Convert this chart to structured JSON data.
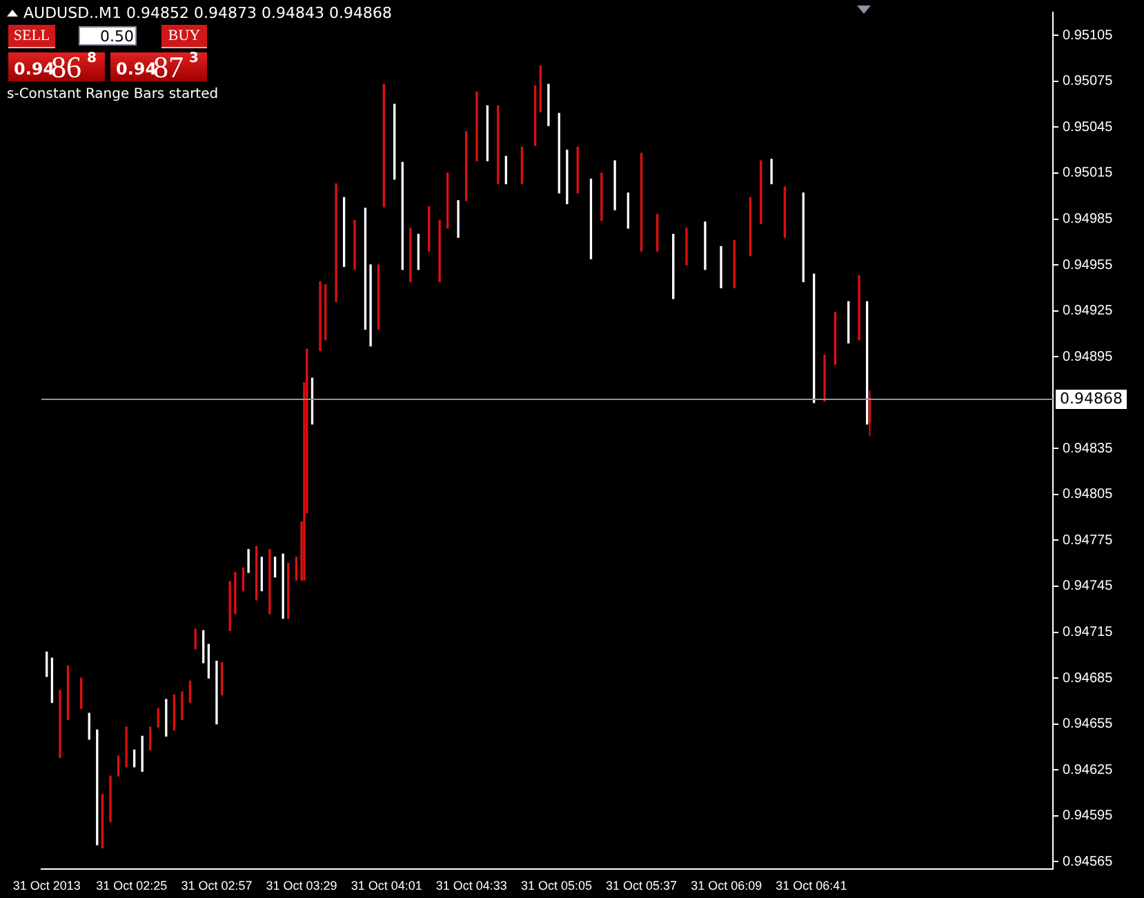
{
  "chart_data": {
    "type": "candlestick",
    "title": "AUDUSD..M1 0.94852 0.94873 0.94843 0.94868",
    "annotations": [
      "SELL",
      "0.50",
      "BUY",
      "0.94868",
      "0.94873",
      "s-Constant Range Bars started"
    ],
    "x": [
      "2013-10-31T01:53",
      "2013-10-31T01:55",
      "2013-10-31T01:58",
      "2013-10-31T02:01",
      "2013-10-31T02:06",
      "2013-10-31T02:09",
      "2013-10-31T02:12",
      "2013-10-31T02:14",
      "2013-10-31T02:17",
      "2013-10-31T02:20",
      "2013-10-31T02:23",
      "2013-10-31T02:26",
      "2013-10-31T02:29",
      "2013-10-31T02:32",
      "2013-10-31T02:35",
      "2013-10-31T02:38",
      "2013-10-31T02:41",
      "2013-10-31T02:44",
      "2013-10-31T02:47",
      "2013-10-31T02:49",
      "2013-10-31T02:52",
      "2013-10-31T02:54",
      "2013-10-31T02:57",
      "2013-10-31T02:59",
      "2013-10-31T03:02",
      "2013-10-31T03:04",
      "2013-10-31T03:07",
      "2013-10-31T03:09",
      "2013-10-31T03:12",
      "2013-10-31T03:14",
      "2013-10-31T03:17",
      "2013-10-31T03:19",
      "2013-10-31T03:22",
      "2013-10-31T03:24",
      "2013-10-31T03:27",
      "2013-10-31T03:29",
      "2013-10-31T03:30",
      "2013-10-31T03:31",
      "2013-10-31T03:33",
      "2013-10-31T03:36",
      "2013-10-31T03:38",
      "2013-10-31T03:42",
      "2013-10-31T03:45",
      "2013-10-31T03:49",
      "2013-10-31T03:53",
      "2013-10-31T03:55",
      "2013-10-31T03:58",
      "2013-10-31T04:00",
      "2013-10-31T04:04",
      "2013-10-31T04:07",
      "2013-10-31T04:10",
      "2013-10-31T04:13",
      "2013-10-31T04:17",
      "2013-10-31T04:21",
      "2013-10-31T04:24",
      "2013-10-31T04:28",
      "2013-10-31T04:31",
      "2013-10-31T04:35",
      "2013-10-31T04:39",
      "2013-10-31T04:43",
      "2013-10-31T04:46",
      "2013-10-31T04:52",
      "2013-10-31T04:57",
      "2013-10-31T04:59",
      "2013-10-31T05:02",
      "2013-10-31T05:06",
      "2013-10-31T05:09",
      "2013-10-31T05:13",
      "2013-10-31T05:18",
      "2013-10-31T05:22",
      "2013-10-31T05:27",
      "2013-10-31T05:32",
      "2013-10-31T05:37",
      "2013-10-31T05:43",
      "2013-10-31T05:49",
      "2013-10-31T05:54",
      "2013-10-31T06:01",
      "2013-10-31T06:07",
      "2013-10-31T06:12",
      "2013-10-31T06:18",
      "2013-10-31T06:22",
      "2013-10-31T06:26",
      "2013-10-31T06:31",
      "2013-10-31T06:38",
      "2013-10-31T06:42",
      "2013-10-31T06:46",
      "2013-10-31T06:50",
      "2013-10-31T06:55",
      "2013-10-31T06:59",
      "2013-10-31T07:02",
      "2013-10-31T07:03"
    ],
    "ohlc": [
      [
        0.94702,
        0.94702,
        0.94686,
        0.94686
      ],
      [
        0.94698,
        0.94698,
        0.94669,
        0.94669
      ],
      [
        0.94633,
        0.94677,
        0.94633,
        0.94677
      ],
      [
        0.94658,
        0.94693,
        0.94658,
        0.94693
      ],
      [
        0.94665,
        0.94685,
        0.94665,
        0.94685
      ],
      [
        0.94662,
        0.94662,
        0.94645,
        0.94645
      ],
      [
        0.94651,
        0.94651,
        0.94576,
        0.94576
      ],
      [
        0.94574,
        0.94609,
        0.94574,
        0.94609
      ],
      [
        0.94591,
        0.94621,
        0.94591,
        0.94621
      ],
      [
        0.94621,
        0.94634,
        0.94621,
        0.94634
      ],
      [
        0.94627,
        0.94653,
        0.94627,
        0.94653
      ],
      [
        0.94638,
        0.94638,
        0.94627,
        0.94627
      ],
      [
        0.94647,
        0.94647,
        0.94624,
        0.94624
      ],
      [
        0.94638,
        0.94653,
        0.94638,
        0.94653
      ],
      [
        0.94653,
        0.94665,
        0.94653,
        0.94665
      ],
      [
        0.94671,
        0.94671,
        0.94647,
        0.94647
      ],
      [
        0.94651,
        0.94674,
        0.94651,
        0.94674
      ],
      [
        0.94658,
        0.94676,
        0.94658,
        0.94676
      ],
      [
        0.94669,
        0.94683,
        0.94669,
        0.94683
      ],
      [
        0.94704,
        0.94717,
        0.94704,
        0.94717
      ],
      [
        0.94716,
        0.94716,
        0.94695,
        0.94695
      ],
      [
        0.94707,
        0.94707,
        0.94685,
        0.94685
      ],
      [
        0.94696,
        0.94696,
        0.94655,
        0.94655
      ],
      [
        0.94674,
        0.94695,
        0.94674,
        0.94695
      ],
      [
        0.94716,
        0.94748,
        0.94716,
        0.94748
      ],
      [
        0.94727,
        0.94754,
        0.94727,
        0.94754
      ],
      [
        0.94742,
        0.94757,
        0.94742,
        0.94757
      ],
      [
        0.94769,
        0.94769,
        0.94754,
        0.94754
      ],
      [
        0.94736,
        0.94771,
        0.94736,
        0.94771
      ],
      [
        0.94764,
        0.94764,
        0.94742,
        0.94742
      ],
      [
        0.94727,
        0.94769,
        0.94727,
        0.94769
      ],
      [
        0.94764,
        0.94764,
        0.94751,
        0.94751
      ],
      [
        0.94766,
        0.94766,
        0.94724,
        0.94724
      ],
      [
        0.94724,
        0.9476,
        0.94724,
        0.9476
      ],
      [
        0.94749,
        0.94764,
        0.94749,
        0.94764
      ],
      [
        0.94749,
        0.94787,
        0.94749,
        0.94787
      ],
      [
        0.94749,
        0.94878,
        0.94749,
        0.94878
      ],
      [
        0.94793,
        0.949,
        0.94793,
        0.949
      ],
      [
        0.94881,
        0.94881,
        0.94851,
        0.94851
      ],
      [
        0.94899,
        0.94944,
        0.94899,
        0.94944
      ],
      [
        0.94906,
        0.94942,
        0.94906,
        0.94942
      ],
      [
        0.94931,
        0.95008,
        0.94931,
        0.95008
      ],
      [
        0.94999,
        0.94999,
        0.94954,
        0.94954
      ],
      [
        0.94952,
        0.94984,
        0.94952,
        0.94984
      ],
      [
        0.94992,
        0.94992,
        0.94913,
        0.94913
      ],
      [
        0.94955,
        0.94955,
        0.94902,
        0.94902
      ],
      [
        0.94913,
        0.94955,
        0.94913,
        0.94955
      ],
      [
        0.94993,
        0.95073,
        0.94993,
        0.95073
      ],
      [
        0.9506,
        0.9506,
        0.95011,
        0.95011
      ],
      [
        0.95022,
        0.95022,
        0.94952,
        0.94952
      ],
      [
        0.94944,
        0.94979,
        0.94944,
        0.94979
      ],
      [
        0.94975,
        0.94975,
        0.94952,
        0.94952
      ],
      [
        0.94964,
        0.94993,
        0.94964,
        0.94993
      ],
      [
        0.94944,
        0.94984,
        0.94944,
        0.94984
      ],
      [
        0.94979,
        0.95015,
        0.94979,
        0.95015
      ],
      [
        0.94997,
        0.94997,
        0.94973,
        0.94973
      ],
      [
        0.94997,
        0.95042,
        0.94997,
        0.95042
      ],
      [
        0.95023,
        0.95068,
        0.95023,
        0.95068
      ],
      [
        0.95059,
        0.95059,
        0.95023,
        0.95023
      ],
      [
        0.95008,
        0.95059,
        0.95008,
        0.95059
      ],
      [
        0.95026,
        0.95026,
        0.95008,
        0.95008
      ],
      [
        0.95008,
        0.95032,
        0.95008,
        0.95032
      ],
      [
        0.95033,
        0.95072,
        0.95033,
        0.95072
      ],
      [
        0.95055,
        0.95085,
        0.95055,
        0.95085
      ],
      [
        0.95073,
        0.95073,
        0.95046,
        0.95046
      ],
      [
        0.95054,
        0.95054,
        0.95002,
        0.95002
      ],
      [
        0.9503,
        0.9503,
        0.94995,
        0.94995
      ],
      [
        0.95002,
        0.95032,
        0.95002,
        0.95032
      ],
      [
        0.95011,
        0.95011,
        0.94959,
        0.94959
      ],
      [
        0.94984,
        0.95015,
        0.94984,
        0.95015
      ],
      [
        0.95023,
        0.95023,
        0.94991,
        0.94991
      ],
      [
        0.95002,
        0.95002,
        0.94979,
        0.94979
      ],
      [
        0.94964,
        0.95028,
        0.94964,
        0.95028
      ],
      [
        0.94964,
        0.94988,
        0.94964,
        0.94988
      ],
      [
        0.94975,
        0.94975,
        0.94933,
        0.94933
      ],
      [
        0.94955,
        0.94979,
        0.94955,
        0.94979
      ],
      [
        0.94983,
        0.94983,
        0.94952,
        0.94952
      ],
      [
        0.94967,
        0.94967,
        0.9494,
        0.9494
      ],
      [
        0.9494,
        0.94971,
        0.9494,
        0.94971
      ],
      [
        0.94961,
        0.94999,
        0.94961,
        0.94999
      ],
      [
        0.94982,
        0.95023,
        0.94982,
        0.95023
      ],
      [
        0.95024,
        0.95024,
        0.95008,
        0.95008
      ],
      [
        0.94973,
        0.95006,
        0.94973,
        0.95006
      ],
      [
        0.95002,
        0.95002,
        0.94944,
        0.94944
      ],
      [
        0.94949,
        0.94949,
        0.94865,
        0.94865
      ],
      [
        0.94866,
        0.94896,
        0.94866,
        0.94896
      ],
      [
        0.9489,
        0.94924,
        0.9489,
        0.94924
      ],
      [
        0.94931,
        0.94931,
        0.94904,
        0.94904
      ],
      [
        0.94906,
        0.94948,
        0.94906,
        0.94948
      ],
      [
        0.94931,
        0.94931,
        0.94851,
        0.94851
      ],
      [
        0.94852,
        0.94873,
        0.94843,
        0.94868
      ]
    ],
    "colors": [
      "#ffffff",
      "#ffffff",
      "#e01010",
      "#e01010",
      "#e01010",
      "#ffffff",
      "#ffffff",
      "#e01010",
      "#e01010",
      "#e01010",
      "#e01010",
      "#ffffff",
      "#ffffff",
      "#e01010",
      "#e01010",
      "#ffffff",
      "#e01010",
      "#e01010",
      "#e01010",
      "#e01010",
      "#ffffff",
      "#ffffff",
      "#ffffff",
      "#e01010",
      "#e01010",
      "#e01010",
      "#e01010",
      "#ffffff",
      "#e01010",
      "#ffffff",
      "#e01010",
      "#ffffff",
      "#ffffff",
      "#e01010",
      "#e01010",
      "#e01010",
      "#e01010",
      "#e01010",
      "#ffffff",
      "#e01010",
      "#e01010",
      "#e01010",
      "#ffffff",
      "#e01010",
      "#ffffff",
      "#ffffff",
      "#e01010",
      "#e01010",
      "#ffffff",
      "#ffffff",
      "#e01010",
      "#ffffff",
      "#e01010",
      "#e01010",
      "#e01010",
      "#ffffff",
      "#e01010",
      "#e01010",
      "#ffffff",
      "#e01010",
      "#ffffff",
      "#e01010",
      "#e01010",
      "#e01010",
      "#ffffff",
      "#ffffff",
      "#ffffff",
      "#e01010",
      "#ffffff",
      "#e01010",
      "#ffffff",
      "#ffffff",
      "#e01010",
      "#e01010",
      "#ffffff",
      "#e01010",
      "#ffffff",
      "#ffffff",
      "#e01010",
      "#e01010",
      "#e01010",
      "#ffffff",
      "#e01010",
      "#ffffff",
      "#ffffff",
      "#e01010",
      "#e01010",
      "#ffffff",
      "#e01010",
      "#ffffff",
      "#e01010"
    ],
    "xlim": [
      "2013-10-31T01:51",
      "2013-10-31T08:12"
    ],
    "xticks": [
      {
        "value": "2013-10-31T01:53",
        "label": "31 Oct 2013"
      },
      {
        "value": "2013-10-31T02:25",
        "label": "31 Oct 02:25"
      },
      {
        "value": "2013-10-31T02:57",
        "label": "31 Oct 02:57"
      },
      {
        "value": "2013-10-31T03:29",
        "label": "31 Oct 03:29"
      },
      {
        "value": "2013-10-31T04:01",
        "label": "31 Oct 04:01"
      },
      {
        "value": "2013-10-31T04:33",
        "label": "31 Oct 04:33"
      },
      {
        "value": "2013-10-31T05:05",
        "label": "31 Oct 05:05"
      },
      {
        "value": "2013-10-31T05:37",
        "label": "31 Oct 05:37"
      },
      {
        "value": "2013-10-31T06:09",
        "label": "31 Oct 06:09"
      },
      {
        "value": "2013-10-31T06:41",
        "label": "31 Oct 06:41"
      }
    ],
    "ylim": [
      0.9456,
      0.9512
    ],
    "yticks": [
      {
        "value": 0.94565,
        "label": "0.94565"
      },
      {
        "value": 0.94595,
        "label": "0.94595"
      },
      {
        "value": 0.94625,
        "label": "0.94625"
      },
      {
        "value": 0.94655,
        "label": "0.94655"
      },
      {
        "value": 0.94685,
        "label": "0.94685"
      },
      {
        "value": 0.94715,
        "label": "0.94715"
      },
      {
        "value": 0.94745,
        "label": "0.94745"
      },
      {
        "value": 0.94775,
        "label": "0.94775"
      },
      {
        "value": 0.94805,
        "label": "0.94805"
      },
      {
        "value": 0.94835,
        "label": "0.94835"
      },
      {
        "value": 0.94895,
        "label": "0.94895"
      },
      {
        "value": 0.94925,
        "label": "0.94925"
      },
      {
        "value": 0.94955,
        "label": "0.94955"
      },
      {
        "value": 0.94985,
        "label": "0.94985"
      },
      {
        "value": 0.95015,
        "label": "0.95015"
      },
      {
        "value": 0.95045,
        "label": "0.95045"
      },
      {
        "value": 0.95075,
        "label": "0.95075"
      },
      {
        "value": 0.95105,
        "label": "0.95105"
      }
    ],
    "ref_lines": [
      {
        "axis": "y",
        "value": 0.94868,
        "label": "0.94868",
        "color": "#8a96a8"
      }
    ]
  }
}
